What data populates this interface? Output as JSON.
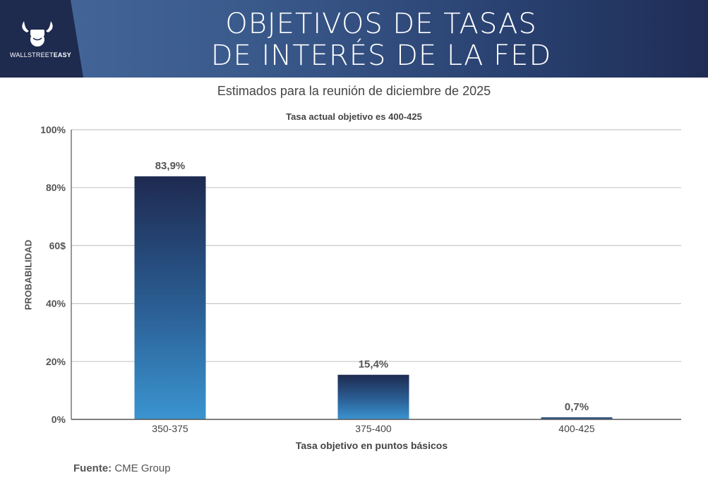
{
  "header": {
    "title_line1": "OBJETIVOS DE TASAS",
    "title_line2": "DE INTERÉS DE LA FED",
    "logo_text_light": "WALLSTREET",
    "logo_text_bold": "EASY",
    "colors": {
      "dark": "#1e2a4e",
      "mid": "#3a5a8c"
    }
  },
  "subtitle": "Estimados para la reunión de diciembre de 2025",
  "source": {
    "label": "Fuente:",
    "value": "CME Group"
  },
  "chart_data": {
    "type": "bar",
    "title": "Tasa actual objetivo es 400-425",
    "xlabel": "Tasa objetivo en puntos básicos",
    "ylabel": "PROBABILIDAD",
    "categories": [
      "350-375",
      "375-400",
      "400-425"
    ],
    "values": [
      83.9,
      15.4,
      0.7
    ],
    "value_labels": [
      "83,9%",
      "15,4%",
      "0,7%"
    ],
    "ylim": [
      0,
      100
    ],
    "yticks": [
      0,
      20,
      40,
      60,
      80,
      100
    ],
    "ytick_labels": [
      "0%",
      "20%",
      "40%",
      "60$",
      "80%",
      "100%"
    ],
    "grid": true,
    "bar_gradient": {
      "top": "#1e2a50",
      "middle": "#2b5f95",
      "bottom": "#3a94d0"
    }
  }
}
